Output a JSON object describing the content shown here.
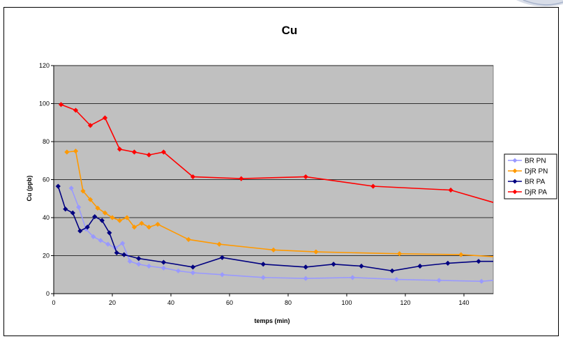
{
  "chart_data": {
    "type": "line",
    "title": "Cu",
    "xlabel": "temps (min)",
    "ylabel": "Cu (ppb)",
    "xlim": [
      0,
      150
    ],
    "ylim": [
      0,
      120
    ],
    "xticks": [
      0,
      20,
      40,
      60,
      80,
      100,
      120,
      140
    ],
    "yticks": [
      0,
      20,
      40,
      60,
      80,
      100,
      120
    ],
    "grid": "horizontal",
    "legend_position": "right",
    "plot_background": "#c0c0c0",
    "series": [
      {
        "name": "BR PN",
        "color": "#9999ff",
        "x": [
          6,
          8.5,
          11,
          13.5,
          16,
          18.5,
          21,
          23.5,
          26,
          29,
          32.5,
          37.5,
          42.5,
          47.5,
          57.5,
          71.5,
          86,
          102,
          117,
          131.5,
          146,
          150
        ],
        "y": [
          55.5,
          45.5,
          34,
          30,
          28,
          26,
          24,
          26.5,
          17,
          15.5,
          14.5,
          13.5,
          12,
          11,
          10,
          8.5,
          8,
          8.5,
          7.5,
          7,
          6.5,
          7
        ]
      },
      {
        "name": "DjR PN",
        "color": "#ff9900",
        "x": [
          4.5,
          7.5,
          10,
          12.5,
          15,
          17.5,
          20,
          22.5,
          25,
          27.5,
          30,
          32.5,
          35.5,
          46,
          56.5,
          75,
          89.5,
          118,
          139,
          150
        ],
        "y": [
          74.5,
          75,
          54,
          49.5,
          45,
          42.5,
          40,
          38.5,
          40,
          35,
          37,
          35,
          36.5,
          28.5,
          26,
          23,
          22,
          21,
          20.5,
          19.5
        ]
      },
      {
        "name": "BR PA",
        "color": "#000080",
        "x": [
          1.5,
          4,
          6.5,
          9,
          11.5,
          14,
          16.5,
          19,
          21.5,
          24,
          29,
          37.5,
          47.5,
          57.5,
          71.5,
          86,
          95.5,
          105,
          115.5,
          125,
          134.5,
          145,
          150
        ],
        "y": [
          56.5,
          44.5,
          42.5,
          33,
          35,
          40.5,
          38.5,
          32,
          21.5,
          20.5,
          18.5,
          16.5,
          14,
          19,
          15.5,
          14,
          15.5,
          14.5,
          12,
          14.5,
          16,
          17,
          17
        ]
      },
      {
        "name": "DjR PA",
        "color": "#ff0000",
        "x": [
          2.5,
          7.5,
          12.5,
          17.5,
          22.5,
          27.5,
          32.5,
          37.5,
          47.5,
          64,
          86,
          109,
          135.5,
          150
        ],
        "y": [
          99.5,
          96.5,
          88.5,
          92.5,
          76,
          74.5,
          73,
          74.5,
          61.5,
          60.5,
          61.5,
          56.5,
          54.5,
          48
        ]
      }
    ]
  }
}
